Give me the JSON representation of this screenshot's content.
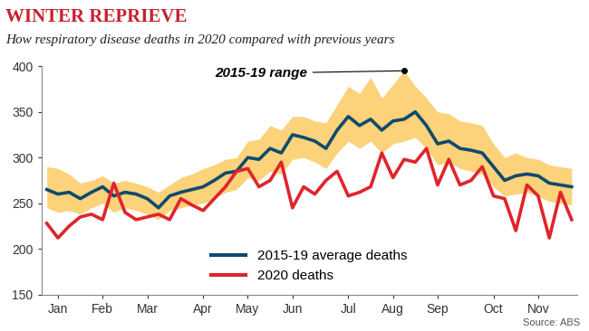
{
  "chart_data": {
    "type": "line",
    "title": "WINTER REPRIEVE",
    "subtitle": "How respiratory disease deaths in 2020 compared with previous years",
    "source": "Source: ABS",
    "categories": [
      null,
      "Jan",
      null,
      null,
      null,
      "Feb",
      null,
      null,
      null,
      "Mar",
      null,
      null,
      null,
      null,
      "Apr",
      null,
      null,
      null,
      "May",
      null,
      null,
      null,
      "Jun",
      null,
      null,
      null,
      null,
      "Jul",
      null,
      null,
      null,
      "Aug",
      null,
      null,
      null,
      "Sep",
      null,
      null,
      null,
      null,
      "Oct",
      null,
      null,
      null,
      "Nov",
      null,
      null,
      null
    ],
    "series": [
      {
        "name": "2015-19 average deaths",
        "color": "#0e4a6e",
        "values": [
          265,
          260,
          262,
          255,
          262,
          268,
          258,
          262,
          260,
          255,
          245,
          258,
          262,
          265,
          268,
          275,
          283,
          285,
          300,
          298,
          310,
          305,
          325,
          322,
          318,
          310,
          330,
          345,
          335,
          342,
          330,
          340,
          342,
          350,
          335,
          315,
          318,
          310,
          308,
          305,
          290,
          275,
          280,
          282,
          280,
          272,
          270,
          268
        ]
      },
      {
        "name": "2020 deaths",
        "color": "#e0242b",
        "values": [
          228,
          212,
          225,
          235,
          238,
          232,
          272,
          240,
          232,
          235,
          238,
          232,
          255,
          248,
          242,
          255,
          268,
          285,
          288,
          268,
          275,
          295,
          245,
          268,
          260,
          275,
          285,
          258,
          262,
          268,
          305,
          278,
          298,
          295,
          310,
          270,
          298,
          270,
          275,
          290,
          258,
          255,
          220,
          270,
          258,
          212,
          262,
          232
        ]
      }
    ],
    "band": {
      "name": "2015-19 range",
      "color": "#fcd27a",
      "low": [
        245,
        240,
        242,
        238,
        245,
        250,
        240,
        245,
        242,
        238,
        232,
        242,
        245,
        248,
        250,
        255,
        262,
        265,
        278,
        275,
        285,
        282,
        298,
        300,
        295,
        288,
        305,
        318,
        310,
        318,
        305,
        315,
        318,
        322,
        310,
        292,
        295,
        288,
        285,
        282,
        268,
        258,
        260,
        262,
        258,
        252,
        250,
        248
      ],
      "high": [
        290,
        288,
        282,
        272,
        275,
        280,
        272,
        275,
        272,
        268,
        262,
        270,
        278,
        282,
        288,
        292,
        298,
        300,
        318,
        320,
        335,
        330,
        345,
        345,
        340,
        338,
        358,
        378,
        370,
        388,
        365,
        380,
        395,
        378,
        365,
        350,
        348,
        340,
        338,
        335,
        315,
        300,
        305,
        300,
        298,
        292,
        290,
        288
      ]
    },
    "ylim": [
      150,
      400
    ],
    "yticks": [
      150,
      200,
      250,
      300,
      350,
      400
    ],
    "grid": false,
    "legend": "lower center"
  }
}
